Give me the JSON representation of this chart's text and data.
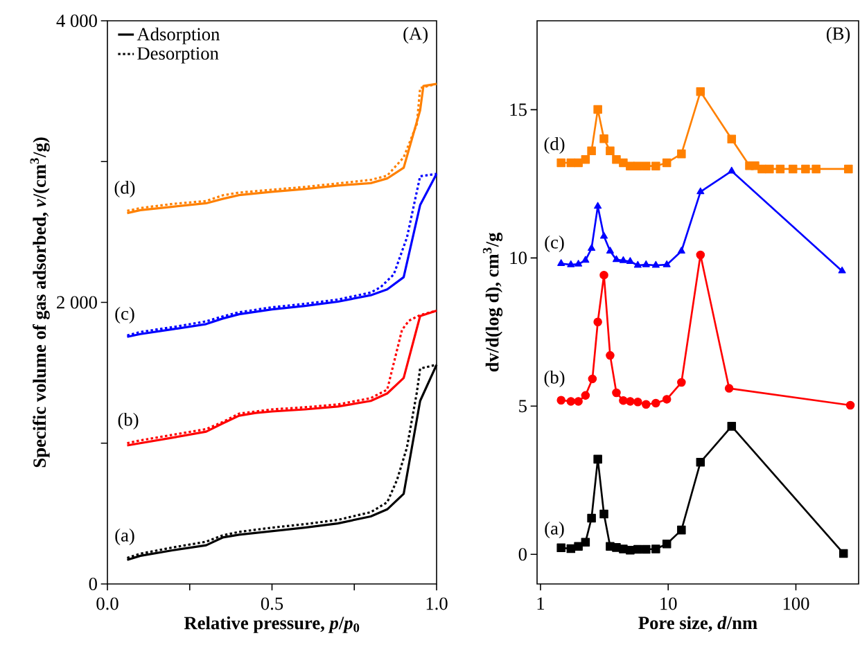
{
  "chart_data": [
    {
      "type": "line",
      "xlabel": "Relative pressure, *p*/*p*$_{0}$",
      "ylabel": "Specific volume of gas adsorbed, *v*/(cm$^{3}$/g)",
      "xlim": [
        0,
        1
      ],
      "ylim": [
        0,
        4000
      ],
      "xticks": [
        {
          "value": 0,
          "label": "0.0"
        },
        {
          "value": 0.25,
          "label": null
        },
        {
          "value": 0.5,
          "label": "0.5"
        },
        {
          "value": 0.75,
          "label": null
        },
        {
          "value": 1,
          "label": "1.0"
        }
      ],
      "yticks": [
        0,
        {
          "value": 1000,
          "label": null
        },
        {
          "value": 2000,
          "label": "2 000"
        },
        {
          "value": 3000,
          "label": null
        },
        {
          "value": 4000,
          "label": "4 000"
        }
      ],
      "legend": "top left",
      "marker": "none",
      "annotations": [
        "(A)",
        "(a)",
        "(b)",
        "(c)",
        "(d)"
      ],
      "series": [
        {
          "name": "Adsorption",
          "color": "#000000",
          "line_style": "solid",
          "x": [
            0.06,
            0.1,
            0.2,
            0.3,
            0.35,
            0.4,
            0.5,
            0.6,
            0.7,
            0.8,
            0.85,
            0.9,
            0.95,
            1.0
          ],
          "values": [
            171,
            200,
            240,
            275,
            330,
            350,
            375,
            400,
            430,
            480,
            530,
            640,
            1300,
            1557
          ]
        },
        {
          "name": "Desorption",
          "color": "#000000",
          "line_style": "dotted",
          "x": [
            0.06,
            0.1,
            0.2,
            0.3,
            0.35,
            0.4,
            0.5,
            0.6,
            0.7,
            0.8,
            0.85,
            0.88,
            0.91,
            0.94,
            0.95,
            1.0
          ],
          "values": [
            185,
            215,
            260,
            300,
            345,
            370,
            400,
            425,
            455,
            510,
            580,
            740,
            970,
            1360,
            1530,
            1557
          ]
        },
        {
          "color": "#ff0000",
          "line_style": "solid",
          "x": [
            0.06,
            0.1,
            0.2,
            0.3,
            0.35,
            0.4,
            0.45,
            0.5,
            0.6,
            0.7,
            0.8,
            0.85,
            0.9,
            0.95,
            1.0
          ],
          "values": [
            984,
            1000,
            1040,
            1082,
            1140,
            1195,
            1215,
            1225,
            1240,
            1260,
            1300,
            1353,
            1463,
            1903,
            1941
          ]
        },
        {
          "color": "#ff0000",
          "line_style": "dotted",
          "x": [
            0.06,
            0.1,
            0.2,
            0.3,
            0.35,
            0.4,
            0.5,
            0.6,
            0.7,
            0.8,
            0.85,
            0.895,
            0.916,
            0.95,
            1.0
          ],
          "values": [
            1000,
            1020,
            1060,
            1100,
            1150,
            1210,
            1240,
            1255,
            1275,
            1320,
            1380,
            1805,
            1870,
            1910,
            1941
          ]
        },
        {
          "color": "#0000ff",
          "line_style": "solid",
          "x": [
            0.06,
            0.1,
            0.2,
            0.3,
            0.35,
            0.4,
            0.5,
            0.6,
            0.7,
            0.8,
            0.85,
            0.9,
            0.95,
            1.0
          ],
          "values": [
            1755,
            1775,
            1810,
            1846,
            1885,
            1916,
            1950,
            1975,
            2005,
            2051,
            2092,
            2179,
            2691,
            2913
          ]
        },
        {
          "color": "#0000ff",
          "line_style": "dotted",
          "x": [
            0.06,
            0.1,
            0.2,
            0.3,
            0.35,
            0.4,
            0.5,
            0.6,
            0.7,
            0.8,
            0.83,
            0.87,
            0.91,
            0.95,
            1.0
          ],
          "values": [
            1765,
            1790,
            1825,
            1865,
            1900,
            1930,
            1965,
            1990,
            2020,
            2070,
            2108,
            2199,
            2461,
            2896,
            2913
          ]
        },
        {
          "color": "#ff8000",
          "line_style": "solid",
          "x": [
            0.06,
            0.1,
            0.2,
            0.3,
            0.35,
            0.4,
            0.5,
            0.6,
            0.7,
            0.8,
            0.85,
            0.9,
            0.95,
            0.96,
            1.0
          ],
          "values": [
            2634,
            2655,
            2680,
            2704,
            2735,
            2762,
            2785,
            2805,
            2830,
            2847,
            2880,
            2956,
            3364,
            3537,
            3552
          ]
        },
        {
          "color": "#ff8000",
          "line_style": "dotted",
          "x": [
            0.06,
            0.1,
            0.2,
            0.3,
            0.35,
            0.4,
            0.5,
            0.6,
            0.7,
            0.8,
            0.85,
            0.9,
            0.94,
            0.95,
            1.0
          ],
          "values": [
            2650,
            2670,
            2700,
            2720,
            2760,
            2780,
            2800,
            2820,
            2845,
            2870,
            2900,
            3030,
            3266,
            3522,
            3552
          ]
        }
      ]
    },
    {
      "type": "line",
      "xlabel": "Pore size, *d*/nm",
      "ylabel": "dv/d(log d), cm$^{3}$/g",
      "log": "x",
      "xlim": [
        0.94,
        310
      ],
      "ylim": [
        -1,
        18
      ],
      "xticks": [
        1,
        10,
        100
      ],
      "yticks": [
        0,
        5,
        10,
        15
      ],
      "line_style": "solid",
      "annotations": [
        "(B)",
        "(a)",
        "(b)",
        "(c)",
        "(d)"
      ],
      "series": [
        {
          "color": "#000000",
          "marker": "square",
          "x": [
            1.45,
            1.73,
            1.98,
            2.25,
            2.51,
            2.81,
            3.14,
            3.51,
            3.93,
            4.45,
            5.04,
            5.78,
            6.71,
            8.0,
            9.75,
            12.7,
            17.9,
            31.4,
            236
          ],
          "values": [
            0.22,
            0.19,
            0.27,
            0.41,
            1.22,
            3.21,
            1.36,
            0.27,
            0.23,
            0.18,
            0.14,
            0.17,
            0.17,
            0.18,
            0.35,
            0.82,
            3.11,
            4.32,
            0.03
          ]
        },
        {
          "color": "#ff0000",
          "marker": "circle",
          "x": [
            1.45,
            1.73,
            1.98,
            2.25,
            2.55,
            2.81,
            3.14,
            3.51,
            3.93,
            4.45,
            5.04,
            5.78,
            6.71,
            8.0,
            9.75,
            12.7,
            17.9,
            30,
            267
          ],
          "values": [
            5.2,
            5.16,
            5.16,
            5.36,
            5.92,
            7.84,
            9.42,
            6.71,
            5.45,
            5.19,
            5.16,
            5.14,
            5.06,
            5.1,
            5.23,
            5.8,
            10.1,
            5.6,
            5.03
          ]
        },
        {
          "color": "#0000ff",
          "marker": "triangle",
          "x": [
            1.45,
            1.73,
            1.98,
            2.25,
            2.51,
            2.81,
            3.14,
            3.51,
            3.93,
            4.45,
            5.04,
            5.78,
            6.71,
            8.0,
            9.75,
            12.7,
            17.9,
            31.4,
            230
          ],
          "values": [
            9.81,
            9.77,
            9.79,
            9.92,
            10.32,
            11.74,
            10.73,
            10.23,
            9.94,
            9.91,
            9.88,
            9.75,
            9.77,
            9.75,
            9.77,
            10.23,
            12.23,
            12.93,
            9.56
          ]
        },
        {
          "color": "#ff8000",
          "marker": "square",
          "x": [
            1.45,
            1.73,
            1.98,
            2.25,
            2.51,
            2.81,
            3.14,
            3.51,
            3.93,
            4.45,
            5.04,
            5.78,
            6.71,
            8.0,
            9.75,
            12.7,
            17.9,
            31.4,
            43.3,
            47.8,
            54.2,
            62.1,
            75.4,
            94.8,
            119,
            144,
            258
          ],
          "values": [
            13.21,
            13.21,
            13.21,
            13.32,
            13.61,
            15.01,
            14.02,
            13.61,
            13.32,
            13.21,
            13.1,
            13.1,
            13.1,
            13.1,
            13.21,
            13.51,
            15.61,
            14.01,
            13.11,
            13.11,
            13.0,
            13.0,
            13.0,
            13.0,
            13.0,
            13.0,
            13.0
          ]
        }
      ]
    }
  ]
}
